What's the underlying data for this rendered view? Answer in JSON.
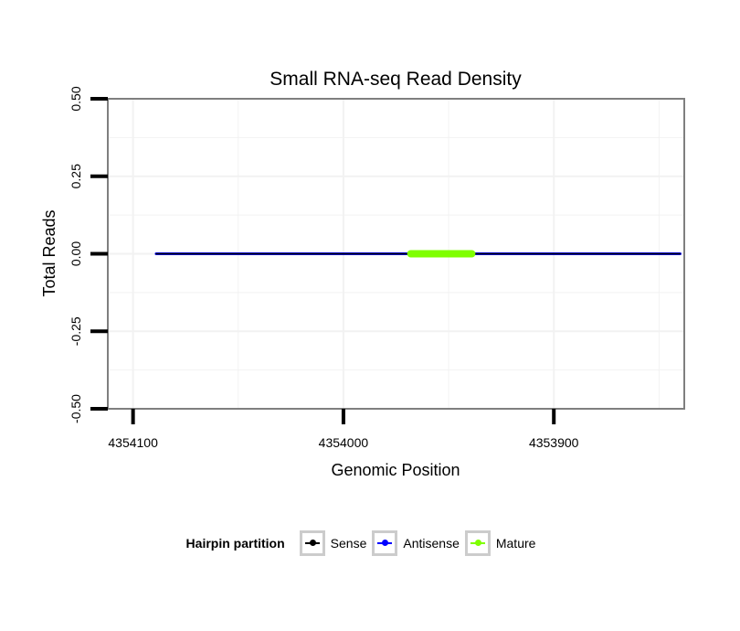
{
  "chart_data": {
    "type": "line",
    "title": "Small RNA-seq Read Density",
    "xlabel": "Genomic Position",
    "ylabel": "Total Reads",
    "xlim": [
      4354112,
      4353838
    ],
    "x_reversed": true,
    "ylim": [
      -0.5,
      0.5
    ],
    "xticks": [
      4354100,
      4354000,
      4353900
    ],
    "xtick_labels": [
      "4354100",
      "4354000",
      "4353900"
    ],
    "yticks": [
      -0.5,
      -0.25,
      0,
      0.25,
      0.5
    ],
    "ytick_labels": [
      "-0.50",
      "-0.25",
      "0.00",
      "0.25",
      "0.50"
    ],
    "grid": true,
    "legend_placement": "bottom",
    "legend_title": "Hairpin partition",
    "series": [
      {
        "name": "Antisense",
        "color": "#0000ff",
        "x": [
          4354089,
          4353840
        ],
        "y": [
          0,
          0
        ]
      },
      {
        "name": "Sense",
        "color": "#000000",
        "x": [
          4354089,
          4353840
        ],
        "y": [
          0,
          0
        ]
      },
      {
        "name": "Mature",
        "color": "#7fff00",
        "x": [
          4353968,
          4353939
        ],
        "y": [
          0,
          0
        ]
      }
    ]
  }
}
